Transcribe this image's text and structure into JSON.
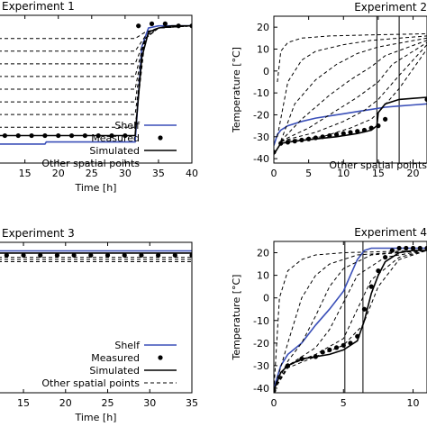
{
  "chart_data": [
    {
      "type": "line",
      "title": "Experiment 1",
      "xlabel": "Time [h]",
      "ylabel": "",
      "x_ticks": [
        15,
        20,
        25,
        30,
        35,
        40
      ],
      "xlim": [
        11,
        40
      ],
      "ylim": [
        -45,
        25
      ],
      "legend": {
        "position": "bottom-right",
        "entries": [
          "Shelf",
          "Measured",
          "Simulated",
          "Other spatial points"
        ]
      },
      "series": [
        {
          "name": "Shelf",
          "color": "#3a4fb8",
          "style": "solid",
          "x": [
            11,
            18,
            18.2,
            31.5,
            32.5,
            33.5,
            35,
            37,
            40
          ],
          "y": [
            -36,
            -36,
            -35,
            -35,
            10,
            19,
            20,
            20,
            20
          ]
        },
        {
          "name": "Measured",
          "color": "#000000",
          "style": "dot",
          "x": [
            12,
            14,
            16,
            18,
            20,
            22,
            24,
            26,
            28,
            30,
            32,
            34,
            36,
            38,
            40
          ],
          "y": [
            -32,
            -32,
            -32,
            -32,
            -32,
            -32,
            -32,
            -32,
            -32,
            -32,
            20,
            21,
            21,
            20,
            20
          ]
        },
        {
          "name": "Simulated",
          "color": "#000000",
          "style": "solid",
          "x": [
            11,
            31.5,
            32.5,
            33.5,
            35,
            37,
            40
          ],
          "y": [
            -32,
            -32,
            5,
            17,
            19,
            20,
            20
          ]
        },
        {
          "name": "Other spatial points",
          "color": "#000000",
          "style": "dashed",
          "x": [
            11,
            31.5,
            33,
            35,
            40
          ],
          "y": [
            -28,
            -28,
            14,
            19,
            20
          ]
        },
        {
          "name": "",
          "color": "#000000",
          "style": "dashed",
          "x": [
            11,
            31.5,
            33,
            35,
            40
          ],
          "y": [
            -22,
            -22,
            14,
            19,
            20
          ]
        },
        {
          "name": "",
          "color": "#000000",
          "style": "dashed",
          "x": [
            11,
            31.5,
            33,
            35,
            40
          ],
          "y": [
            -16,
            -16,
            14,
            19,
            20
          ]
        },
        {
          "name": "",
          "color": "#000000",
          "style": "dashed",
          "x": [
            11,
            31.5,
            33,
            35,
            40
          ],
          "y": [
            -10,
            -10,
            14,
            19,
            20
          ]
        },
        {
          "name": "",
          "color": "#000000",
          "style": "dashed",
          "x": [
            11,
            31.5,
            33,
            35,
            40
          ],
          "y": [
            -4,
            -4,
            14,
            19,
            20
          ]
        },
        {
          "name": "",
          "color": "#000000",
          "style": "dashed",
          "x": [
            11,
            31.5,
            33,
            35,
            40
          ],
          "y": [
            2,
            2,
            14,
            19,
            20
          ]
        },
        {
          "name": "",
          "color": "#000000",
          "style": "dashed",
          "x": [
            11,
            31.5,
            33,
            35,
            40
          ],
          "y": [
            8,
            8,
            15,
            19,
            20
          ]
        },
        {
          "name": "",
          "color": "#000000",
          "style": "dashed",
          "x": [
            11,
            31.5,
            33,
            35,
            40
          ],
          "y": [
            14,
            14,
            17,
            19,
            20
          ]
        }
      ]
    },
    {
      "type": "line",
      "title": "Experiment 2",
      "xlabel": "Time [h]",
      "ylabel": "Temperature [°C]",
      "x_ticks": [
        0,
        5,
        10,
        15,
        20
      ],
      "y_ticks": [
        20,
        10,
        0,
        -10,
        -20,
        -30,
        -40
      ],
      "xlim": [
        0,
        22
      ],
      "ylim": [
        -42,
        25
      ],
      "vlines": [
        14.8,
        18
      ],
      "legend": {
        "position": "bottom-right",
        "entries": [
          "Other spatial points"
        ]
      },
      "series": [
        {
          "name": "Shelf",
          "color": "#3a4fb8",
          "style": "solid",
          "x": [
            0,
            0.5,
            1,
            2,
            4,
            6,
            8,
            10,
            12,
            14,
            16,
            18,
            20,
            22
          ],
          "y": [
            -34,
            -29,
            -27,
            -25,
            -23,
            -21.5,
            -20.5,
            -19.5,
            -18.5,
            -17.5,
            -16.5,
            -16,
            -15.5,
            -15
          ]
        },
        {
          "name": "Measured",
          "color": "#000000",
          "style": "dot",
          "x": [
            0,
            1,
            2,
            3,
            4,
            5,
            6,
            7,
            8,
            9,
            10,
            11,
            12,
            13,
            14,
            15,
            16,
            22
          ],
          "y": [
            -37,
            -33,
            -32.5,
            -32,
            -31.5,
            -31,
            -30.5,
            -30,
            -29.5,
            -29,
            -28.5,
            -28,
            -27.5,
            -27,
            -26,
            -25,
            -22,
            -13
          ]
        },
        {
          "name": "Simulated",
          "color": "#000000",
          "style": "solid",
          "x": [
            0,
            1,
            3,
            6,
            9,
            12,
            14,
            14.8,
            15,
            16,
            18,
            20,
            22
          ],
          "y": [
            -38,
            -33,
            -32,
            -31,
            -30,
            -28.5,
            -27,
            -25,
            -19,
            -15,
            -13,
            -12.5,
            -12
          ]
        },
        {
          "name": "Other spatial points",
          "color": "#000000",
          "style": "dashed",
          "x": [
            0.5,
            1,
            2,
            4,
            8,
            14,
            22
          ],
          "y": [
            -5,
            9,
            13,
            15,
            16,
            16.5,
            17
          ]
        },
        {
          "name": "",
          "color": "#000000",
          "style": "dashed",
          "x": [
            0.5,
            2,
            4,
            6,
            10,
            14,
            22
          ],
          "y": [
            -30,
            -5,
            5,
            9,
            12,
            14,
            16
          ]
        },
        {
          "name": "",
          "color": "#000000",
          "style": "dashed",
          "x": [
            1,
            3,
            6,
            9,
            12,
            15,
            22
          ],
          "y": [
            -32,
            -15,
            -4,
            3,
            8,
            11,
            15
          ]
        },
        {
          "name": "",
          "color": "#000000",
          "style": "dashed",
          "x": [
            1,
            4,
            8,
            11,
            14,
            16,
            22
          ],
          "y": [
            -32,
            -22,
            -11,
            -4,
            2,
            7,
            14
          ]
        },
        {
          "name": "",
          "color": "#000000",
          "style": "dashed",
          "x": [
            1,
            5,
            9,
            12,
            15,
            17,
            22
          ],
          "y": [
            -32,
            -26,
            -18,
            -12,
            -5,
            3,
            13
          ]
        },
        {
          "name": "",
          "color": "#000000",
          "style": "dashed",
          "x": [
            1,
            6,
            10,
            13,
            15,
            18,
            22
          ],
          "y": [
            -32,
            -28,
            -23,
            -18,
            -13,
            -2,
            12
          ]
        },
        {
          "name": "",
          "color": "#000000",
          "style": "dashed",
          "x": [
            1,
            7,
            11,
            14,
            15,
            18,
            22
          ],
          "y": [
            -32,
            -30,
            -26,
            -22,
            -19,
            -8,
            10
          ]
        }
      ]
    },
    {
      "type": "line",
      "title": "Experiment 3",
      "xlabel": "Time [h]",
      "ylabel": "",
      "x_ticks": [
        15,
        20,
        25,
        30,
        35
      ],
      "xlim": [
        12,
        35
      ],
      "ylim": [
        -45,
        25
      ],
      "legend": {
        "position": "bottom-right",
        "entries": [
          "Shelf",
          "Measured",
          "Simulated",
          "Other spatial points"
        ]
      },
      "series": [
        {
          "name": "Shelf",
          "color": "#3a4fb8",
          "style": "solid",
          "x": [
            12,
            35
          ],
          "y": [
            21,
            21
          ]
        },
        {
          "name": "Measured",
          "color": "#000000",
          "style": "dot",
          "x": [
            13,
            15,
            17,
            19,
            21,
            23,
            25,
            27,
            29,
            31,
            33,
            35
          ],
          "y": [
            19,
            19,
            19,
            19,
            19,
            19,
            19,
            19,
            19,
            19,
            19,
            19
          ]
        },
        {
          "name": "Simulated",
          "color": "#000000",
          "style": "solid",
          "x": [
            12,
            35
          ],
          "y": [
            20,
            20
          ]
        },
        {
          "name": "Other spatial points",
          "color": "#000000",
          "style": "dashed",
          "x": [
            12,
            35
          ],
          "y": [
            18,
            18
          ]
        },
        {
          "name": "",
          "color": "#000000",
          "style": "dashed",
          "x": [
            12,
            35
          ],
          "y": [
            17,
            17
          ]
        },
        {
          "name": "",
          "color": "#000000",
          "style": "dashed",
          "x": [
            12,
            35
          ],
          "y": [
            16,
            16
          ]
        }
      ]
    },
    {
      "type": "line",
      "title": "Experiment 4",
      "xlabel": "Time [h]",
      "ylabel": "Temperature [°C]",
      "x_ticks": [
        0,
        5,
        10
      ],
      "y_ticks": [
        20,
        10,
        0,
        -10,
        -20,
        -30,
        -40
      ],
      "xlim": [
        0,
        11
      ],
      "ylim": [
        -42,
        25
      ],
      "vlines": [
        5.1,
        6.4
      ],
      "legend": {
        "position": "bottom-right",
        "entries": []
      },
      "series": [
        {
          "name": "Shelf",
          "color": "#3a4fb8",
          "style": "solid",
          "x": [
            0,
            0.5,
            1,
            2,
            3,
            4,
            5,
            5.5,
            6,
            6.5,
            7,
            8,
            9,
            10,
            11
          ],
          "y": [
            -40,
            -30,
            -25,
            -20,
            -12,
            -5,
            3,
            10,
            17,
            21,
            22,
            22,
            22,
            22,
            22
          ]
        },
        {
          "name": "Measured",
          "color": "#000000",
          "style": "dot",
          "x": [
            0,
            1,
            2,
            3,
            3.5,
            4,
            4.5,
            5,
            5.5,
            6,
            6.5,
            7,
            7.5,
            8,
            8.5,
            9,
            9.5,
            10,
            10.5,
            11
          ],
          "y": [
            -41,
            -30,
            -27,
            -26,
            -24,
            -23,
            -22,
            -21,
            -20,
            -17,
            -5,
            5,
            12,
            18,
            21,
            22,
            22,
            22,
            22,
            22
          ]
        },
        {
          "name": "Simulated",
          "color": "#000000",
          "style": "solid",
          "x": [
            0,
            0.5,
            1,
            2,
            3,
            4,
            5,
            6,
            6.5,
            7,
            7.5,
            8,
            9,
            10,
            11
          ],
          "y": [
            -41,
            -33,
            -30,
            -27,
            -26,
            -25,
            -23,
            -19,
            -10,
            2,
            10,
            16,
            20,
            21,
            21
          ]
        },
        {
          "name": "Other spatial points",
          "color": "#000000",
          "style": "dashed",
          "x": [
            0,
            0.4,
            1,
            2,
            3,
            5,
            11
          ],
          "y": [
            -41,
            0,
            12,
            17,
            19,
            20,
            21
          ]
        },
        {
          "name": "",
          "color": "#000000",
          "style": "dashed",
          "x": [
            0,
            1,
            2,
            3,
            4,
            6,
            11
          ],
          "y": [
            -41,
            -20,
            0,
            10,
            15,
            19,
            21
          ]
        },
        {
          "name": "",
          "color": "#000000",
          "style": "dashed",
          "x": [
            0,
            1,
            2,
            3,
            4,
            5,
            7,
            11
          ],
          "y": [
            -41,
            -28,
            -20,
            -8,
            5,
            13,
            19,
            21
          ]
        },
        {
          "name": "",
          "color": "#000000",
          "style": "dashed",
          "x": [
            0,
            1,
            3,
            4,
            5,
            6,
            8,
            11
          ],
          "y": [
            -41,
            -30,
            -22,
            -14,
            -2,
            10,
            18,
            21
          ]
        },
        {
          "name": "",
          "color": "#000000",
          "style": "dashed",
          "x": [
            0,
            1,
            3,
            5,
            6,
            7,
            9,
            11
          ],
          "y": [
            -41,
            -30,
            -25,
            -18,
            -5,
            8,
            18,
            21
          ]
        },
        {
          "name": "",
          "color": "#000000",
          "style": "dashed",
          "x": [
            0,
            1,
            3,
            5,
            6.4,
            7.5,
            9,
            11
          ],
          "y": [
            -41,
            -31,
            -26,
            -21,
            -12,
            5,
            17,
            21
          ]
        }
      ]
    }
  ]
}
